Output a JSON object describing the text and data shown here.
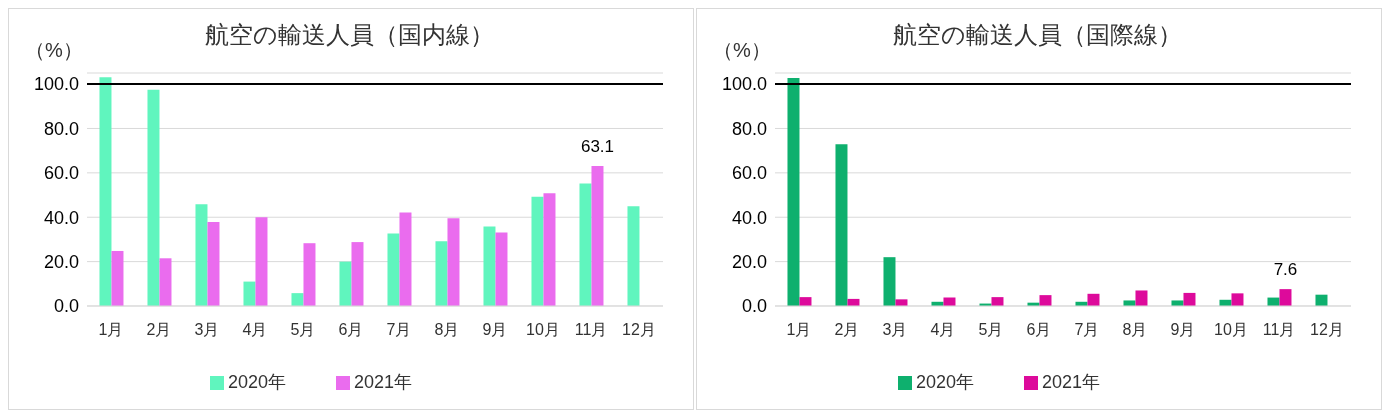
{
  "chart_data": [
    {
      "type": "bar",
      "title": "航空の輸送人員（国内線）",
      "ylabel": "（%）",
      "categories": [
        "1月",
        "2月",
        "3月",
        "4月",
        "5月",
        "6月",
        "7月",
        "8月",
        "9月",
        "10月",
        "11月",
        "12月"
      ],
      "series": [
        {
          "name": "2020年",
          "color": "#60f5be",
          "values": [
            103.1,
            97.5,
            45.8,
            11.0,
            5.8,
            20.0,
            32.7,
            29.2,
            35.8,
            49.2,
            55.2,
            45.0
          ]
        },
        {
          "name": "2021年",
          "color": "#ea6cee",
          "values": [
            24.8,
            21.5,
            37.9,
            40.0,
            28.3,
            28.8,
            42.1,
            39.6,
            33.1,
            50.8,
            63.1,
            null
          ],
          "value_labels": [
            null,
            null,
            null,
            null,
            null,
            null,
            null,
            null,
            null,
            null,
            "63.1",
            null
          ]
        }
      ],
      "ylim": [
        0,
        105
      ],
      "yticks": [
        {
          "value": 0,
          "label": "0.0"
        },
        {
          "value": 20,
          "label": "20.0"
        },
        {
          "value": 40,
          "label": "40.0"
        },
        {
          "value": 60,
          "label": "60.0"
        },
        {
          "value": 80,
          "label": "80.0"
        },
        {
          "value": 100,
          "label": "100.0"
        }
      ],
      "ref_lines": [
        {
          "axis": "y",
          "value": 100,
          "color": "#000000"
        }
      ],
      "grid": "y",
      "legend": "bottom"
    },
    {
      "type": "bar",
      "title": "航空の輸送人員（国際線）",
      "ylabel": "（%）",
      "categories": [
        "1月",
        "2月",
        "3月",
        "4月",
        "5月",
        "6月",
        "7月",
        "8月",
        "9月",
        "10月",
        "11月",
        "12月"
      ],
      "series": [
        {
          "name": "2020年",
          "color": "#0eb06e",
          "values": [
            102.8,
            72.9,
            22.0,
            1.9,
            1.1,
            1.5,
            1.9,
            2.5,
            2.5,
            2.8,
            3.8,
            5.1
          ]
        },
        {
          "name": "2021年",
          "color": "#dd0a9b",
          "values": [
            4.0,
            3.2,
            3.0,
            3.8,
            4.0,
            4.9,
            5.5,
            7.0,
            5.9,
            5.7,
            7.6,
            null
          ],
          "value_labels": [
            null,
            null,
            null,
            null,
            null,
            null,
            null,
            null,
            null,
            null,
            "7.6",
            null
          ]
        }
      ],
      "ylim": [
        0,
        105
      ],
      "yticks": [
        {
          "value": 0,
          "label": "0.0"
        },
        {
          "value": 20,
          "label": "20.0"
        },
        {
          "value": 40,
          "label": "40.0"
        },
        {
          "value": 60,
          "label": "60.0"
        },
        {
          "value": 80,
          "label": "80.0"
        },
        {
          "value": 100,
          "label": "100.0"
        }
      ],
      "ref_lines": [
        {
          "axis": "y",
          "value": 100,
          "color": "#000000"
        }
      ],
      "grid": "y",
      "legend": "bottom"
    }
  ]
}
